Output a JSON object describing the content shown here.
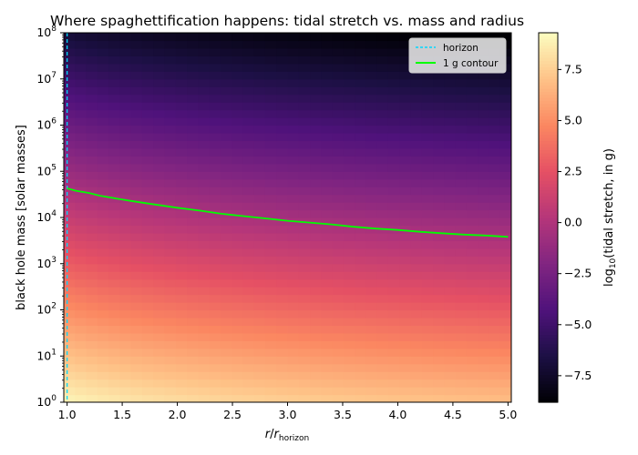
{
  "chart_data": {
    "type": "heatmap",
    "title": "Where spaghettification happens: tidal stretch vs. mass and radius",
    "xlabel_main": "r",
    "xlabel_sub": "horizon",
    "ylabel": "black hole mass [solar masses]",
    "colorbar_label_prefix": "log",
    "colorbar_label_sub": "10",
    "colorbar_label_suffix": "(tidal stretch, in g)",
    "colormap": "magma",
    "xlim": [
      0.97,
      5.03
    ],
    "ylim_log10": [
      0,
      8
    ],
    "yscale": "log",
    "clim": [
      -8.8,
      9.3
    ],
    "x_ticks": [
      1.0,
      1.5,
      2.0,
      2.5,
      3.0,
      3.5,
      4.0,
      4.5,
      5.0
    ],
    "x_tick_labels": [
      "1.0",
      "1.5",
      "2.0",
      "2.5",
      "3.0",
      "3.5",
      "4.0",
      "4.5",
      "5.0"
    ],
    "y_ticks_log10": [
      0,
      1,
      2,
      3,
      4,
      5,
      6,
      7,
      8
    ],
    "y_tick_base": "10",
    "colorbar_ticks": [
      7.5,
      5.0,
      2.5,
      0.0,
      -2.5,
      -5.0,
      -7.5
    ],
    "colorbar_tick_labels": [
      "7.5",
      "5.0",
      "2.5",
      "0.0",
      "−2.5",
      "−5.0",
      "−7.5"
    ],
    "field_model": "log10_stretch = 9.0 - 2*log10(M) - 3*log10(r/r_horizon)",
    "horizon_line": {
      "label": "horizon",
      "x": 1.0,
      "color": "#00d8ff"
    },
    "contour": {
      "label": "1 g contour",
      "color": "#00ff00",
      "x": [
        1.0,
        1.08,
        1.2,
        1.3,
        1.45,
        1.6,
        1.8,
        2.0,
        2.2,
        2.4,
        2.6,
        2.8,
        3.0,
        3.2,
        3.4,
        3.6,
        3.8,
        4.0,
        4.2,
        4.4,
        4.6,
        4.8,
        5.0
      ],
      "log10_mass": [
        4.63,
        4.58,
        4.53,
        4.47,
        4.41,
        4.35,
        4.28,
        4.21,
        4.15,
        4.08,
        4.03,
        3.98,
        3.93,
        3.89,
        3.85,
        3.8,
        3.76,
        3.73,
        3.69,
        3.66,
        3.63,
        3.61,
        3.58
      ]
    },
    "legend_location": "upper right"
  }
}
